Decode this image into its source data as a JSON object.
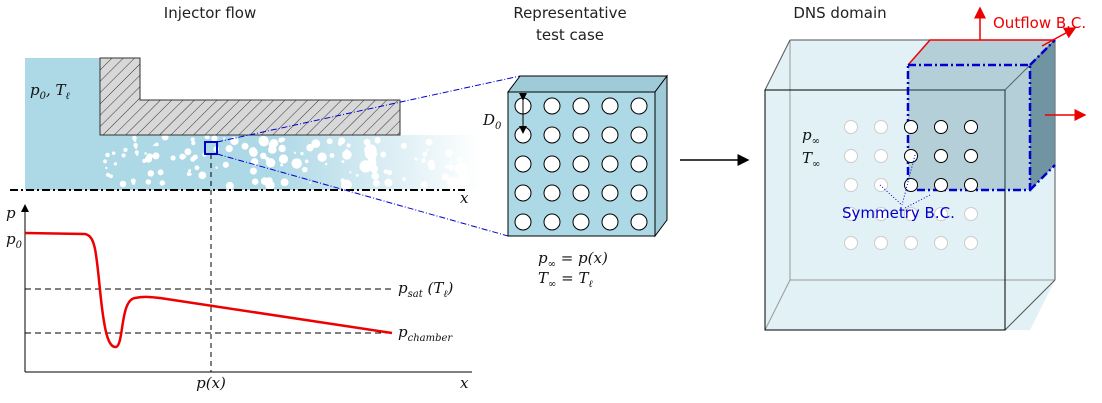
{
  "panels": {
    "injector": {
      "title": "Injector flow",
      "inlet": [
        {
          "base": "p",
          "sub": "0"
        },
        {
          "base": ", T",
          "sub": "ℓ"
        }
      ],
      "axis_x_top": "x",
      "plot": {
        "y_label": "p",
        "p0": {
          "base": "p",
          "sub": "0"
        },
        "psat": {
          "base": "p",
          "sub": "sat",
          "tail": " (T",
          "sub2": "ℓ",
          "tail2": ")"
        },
        "pchamber": {
          "base": "p",
          "sub": "chamber"
        },
        "x_marker": "p(x)",
        "x_label": "x"
      }
    },
    "test_case": {
      "title_lines": [
        "Representative",
        "test case"
      ],
      "d0": {
        "base": "D",
        "sub": "0"
      },
      "eq1": {
        "base": "p",
        "sub": "∞",
        "tail": " = p(x)"
      },
      "eq2": {
        "base": "T",
        "sub": "∞",
        "tail": " = T",
        "sub2": "ℓ"
      }
    },
    "dns": {
      "title": "DNS domain",
      "outflow": "Outflow B.C.",
      "p_inf": {
        "base": "p",
        "sub": "∞"
      },
      "t_inf": {
        "base": "T",
        "sub": "∞"
      },
      "symmetry": "Symmetry B.C."
    }
  }
}
